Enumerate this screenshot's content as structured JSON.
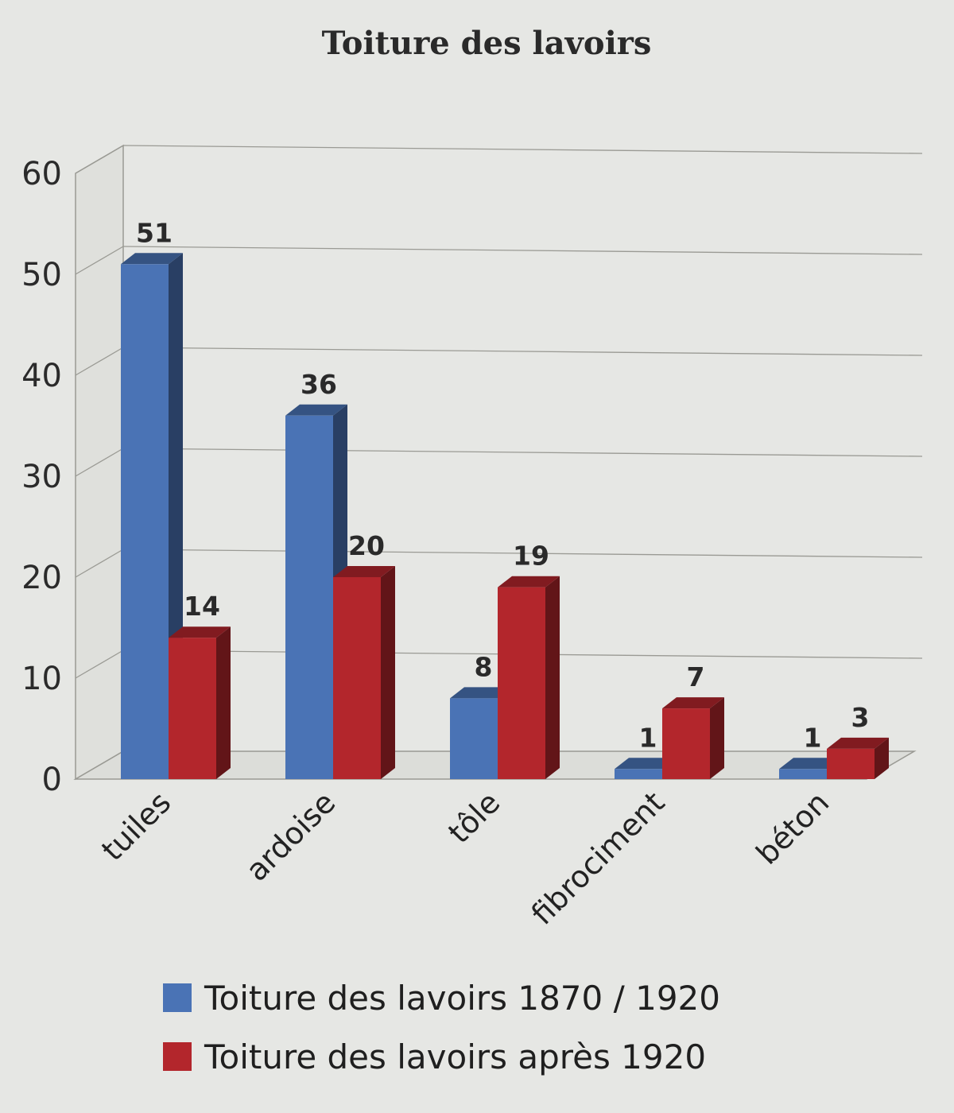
{
  "chart_data": {
    "type": "bar",
    "title": "Toiture des lavoirs",
    "categories": [
      "tuiles",
      "ardoise",
      "tôle",
      "fibrociment",
      "béton"
    ],
    "series": [
      {
        "name": "Toiture des lavoirs 1870 / 1920",
        "values": [
          51,
          36,
          8,
          1,
          1
        ],
        "color": "#4a73b5"
      },
      {
        "name": "Toiture des lavoirs après 1920",
        "values": [
          14,
          20,
          19,
          7,
          3
        ],
        "color": "#b3262c"
      }
    ],
    "ylim": [
      0,
      60
    ],
    "yticks": [
      "0",
      "10",
      "20",
      "30",
      "40",
      "50",
      "60"
    ],
    "xlabel": "",
    "ylabel": "",
    "grid": true,
    "legend_position": "bottom",
    "style": "3d"
  }
}
